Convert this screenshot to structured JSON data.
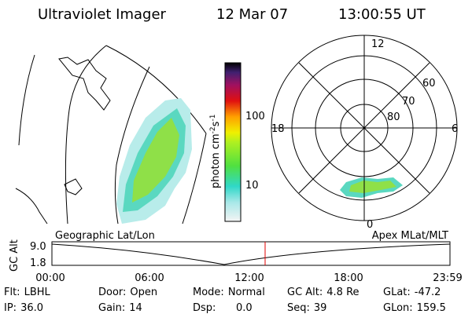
{
  "header": {
    "instrument": "Ultraviolet Imager",
    "date": "12 Mar 07",
    "time": "13:00:55 UT"
  },
  "colorbar": {
    "unit": {
      "base": "photon cm",
      "exp1": "-2",
      "mid": "s",
      "exp2": "-1"
    },
    "ticks": [
      "100",
      "10"
    ]
  },
  "polar": {
    "mlt_labels": [
      "12",
      "18",
      "6",
      "0"
    ],
    "mlat_labels": [
      "60",
      "70",
      "80"
    ]
  },
  "timeline": {
    "left_label": "Geographic Lat/Lon",
    "right_label": "Apex MLat/MLT",
    "y_label": "GC Alt",
    "y_ticks": [
      "9.0",
      "1.8"
    ],
    "x_ticks": [
      "00:00",
      "06:00",
      "12:00",
      "18:00",
      "23:59"
    ]
  },
  "status": [
    [
      {
        "label": "Flt:",
        "value": "LBHL"
      },
      {
        "label": "IP:",
        "value": "36.0"
      }
    ],
    [
      {
        "label": "Door:",
        "value": "Open"
      },
      {
        "label": "Gain:",
        "value": "14"
      }
    ],
    [
      {
        "label": "Mode:",
        "value": "Normal"
      },
      {
        "label": "Dsp:",
        "value": "0.0"
      }
    ],
    [
      {
        "label": "GC Alt:",
        "value": "4.8 Re"
      },
      {
        "label": "Seq:",
        "value": "39"
      }
    ],
    [
      {
        "label": "GLat:",
        "value": "-47.2"
      },
      {
        "label": "GLon:",
        "value": "159.5"
      }
    ]
  ]
}
